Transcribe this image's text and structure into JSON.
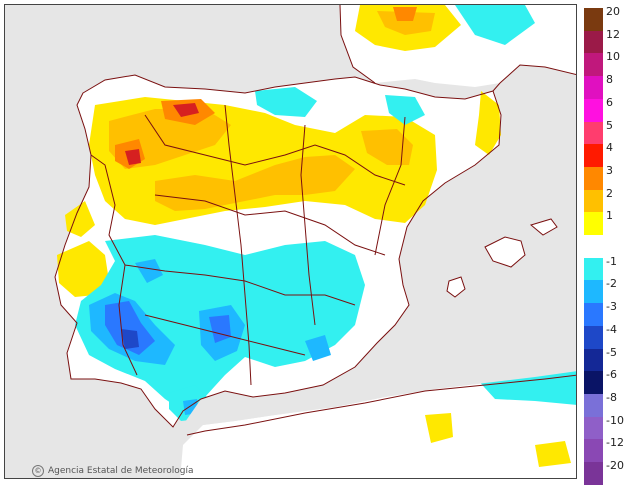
{
  "credit": {
    "text": "Agencia Estatal de Meteorología",
    "logo_icon": "aemet-logo-icon"
  },
  "legend": {
    "items": [
      {
        "label": "20",
        "color": "#7a3a10"
      },
      {
        "label": "12",
        "color": "#9b1a48"
      },
      {
        "label": "10",
        "color": "#c0187c"
      },
      {
        "label": "8",
        "color": "#e010c0"
      },
      {
        "label": "6",
        "color": "#ff10e0"
      },
      {
        "label": "5",
        "color": "#ff3d6e"
      },
      {
        "label": "4",
        "color": "#ff1a00"
      },
      {
        "label": "3",
        "color": "#ff8800"
      },
      {
        "label": "2",
        "color": "#ffc000"
      },
      {
        "label": "1",
        "color": "#ffff00"
      },
      {
        "label": "",
        "color": "#ffffff"
      },
      {
        "label": "-1",
        "color": "#33f0f0"
      },
      {
        "label": "-2",
        "color": "#1eb8ff"
      },
      {
        "label": "-3",
        "color": "#2a78ff"
      },
      {
        "label": "-4",
        "color": "#1e48c8"
      },
      {
        "label": "-5",
        "color": "#142896"
      },
      {
        "label": "-6",
        "color": "#0a1466"
      },
      {
        "label": "-8",
        "color": "#7a70d8"
      },
      {
        "label": "-10",
        "color": "#8f5fc8"
      },
      {
        "label": "-12",
        "color": "#8a48b4"
      },
      {
        "label": "-20",
        "color": "#7a3498"
      }
    ]
  },
  "colors": {
    "sea": "#e6e6e6",
    "land": "#ffffff",
    "border": "#7a1010",
    "warm": "#ffe800",
    "warm2": "#ffc000",
    "warm3": "#ff8800",
    "hot": "#d62020",
    "cool": "#33f0f0",
    "cool2": "#1eb8ff",
    "cool3": "#2a78ff",
    "cold": "#1e48c8"
  }
}
